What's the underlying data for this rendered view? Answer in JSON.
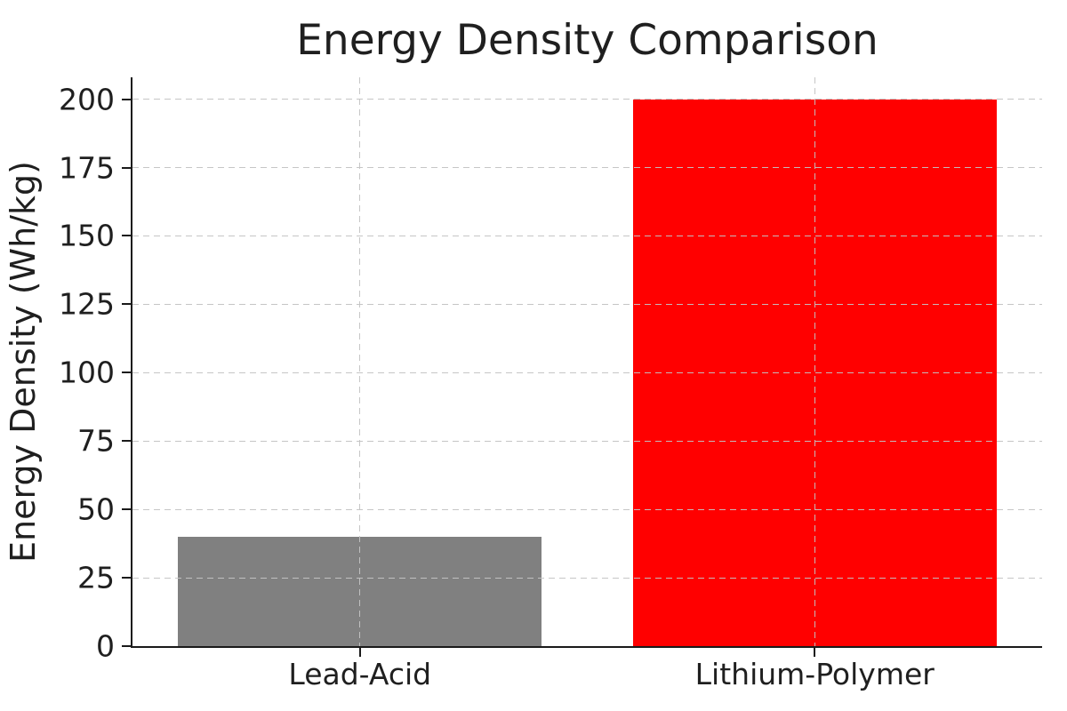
{
  "chart_data": {
    "type": "bar",
    "title": "Energy Density Comparison",
    "xlabel": "",
    "ylabel": "Energy Density (Wh/kg)",
    "categories": [
      "Lead-Acid",
      "Lithium-Polymer"
    ],
    "values": [
      40,
      200
    ],
    "bar_colors": [
      "#808080",
      "#ff0000"
    ],
    "bar_width_fraction": 0.8,
    "yticks": [
      0,
      25,
      50,
      75,
      100,
      125,
      150,
      175,
      200
    ],
    "ylim": [
      0,
      208
    ],
    "grid": "dashed, horizontal and vertical, drawn above bars",
    "legend": "none",
    "background_color": "#ffffff",
    "grid_color": "#c3c3c3",
    "spine_color": "#1a1a1a",
    "text_color": "#1f1f1f"
  }
}
